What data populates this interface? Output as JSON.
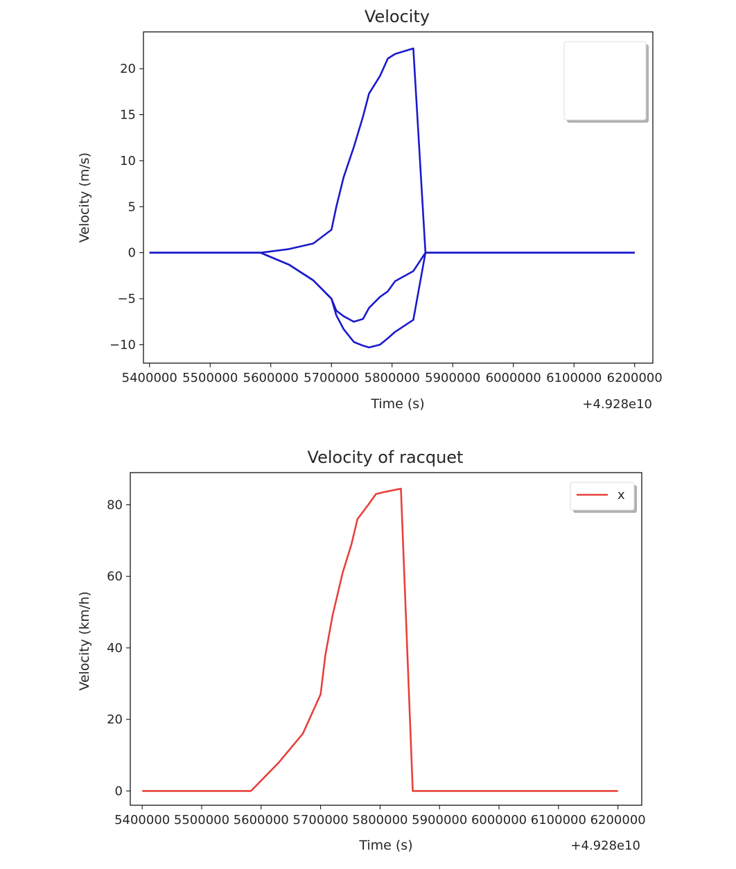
{
  "chart_data": [
    {
      "type": "line",
      "title": "Velocity",
      "xlabel": "Time (s)",
      "ylabel": "Velocity (m/s)",
      "x_offset_label": "+4.928e10",
      "xlim": [
        5390000,
        6230000
      ],
      "ylim": [
        -12,
        24
      ],
      "xticks": [
        5400000,
        5500000,
        5600000,
        5700000,
        5800000,
        5900000,
        6000000,
        6100000,
        6200000
      ],
      "xtick_labels": [
        "5400000",
        "5500000",
        "5600000",
        "5700000",
        "5800000",
        "5900000",
        "6000000",
        "6100000",
        "6200000"
      ],
      "yticks": [
        -10,
        -5,
        0,
        5,
        10,
        15,
        20
      ],
      "ytick_labels": [
        "−10",
        "−5",
        "0",
        "5",
        "10",
        "15",
        "20"
      ],
      "legend": {
        "location": "upper right",
        "entries": []
      },
      "series": [
        {
          "color": "#1a1acc",
          "x": [
            5400000,
            5500000,
            5583000,
            5630000,
            5670000,
            5700000,
            5708000,
            5720000,
            5737000,
            5752000,
            5762000,
            5780000,
            5793000,
            5805000,
            5835000,
            5855000,
            6200000
          ],
          "y": [
            0,
            0,
            0,
            0.4,
            1.0,
            2.5,
            5.0,
            8.2,
            11.5,
            14.8,
            17.3,
            19.2,
            21.1,
            21.6,
            22.2,
            0,
            0
          ]
        },
        {
          "color": "#1a1acc",
          "x": [
            5400000,
            5500000,
            5583000,
            5630000,
            5670000,
            5700000,
            5708000,
            5720000,
            5737000,
            5752000,
            5762000,
            5780000,
            5793000,
            5805000,
            5835000,
            5855000,
            6200000
          ],
          "y": [
            0,
            0,
            0,
            -1.3,
            -3.0,
            -5.0,
            -6.3,
            -6.9,
            -7.5,
            -7.2,
            -6.0,
            -4.8,
            -4.2,
            -3.1,
            -2.0,
            0,
            0
          ]
        },
        {
          "color": "#1a1acc",
          "x": [
            5400000,
            5500000,
            5583000,
            5630000,
            5670000,
            5700000,
            5708000,
            5720000,
            5737000,
            5752000,
            5762000,
            5780000,
            5793000,
            5805000,
            5835000,
            5855000,
            6200000
          ],
          "y": [
            0,
            0,
            0,
            -1.3,
            -3.0,
            -5.0,
            -6.8,
            -8.3,
            -9.7,
            -10.1,
            -10.3,
            -10.0,
            -9.3,
            -8.6,
            -7.3,
            0,
            0
          ]
        }
      ]
    },
    {
      "type": "line",
      "title": "Velocity of racquet",
      "xlabel": "Time (s)",
      "ylabel": "Velocity (km/h)",
      "x_offset_label": "+4.928e10",
      "xlim": [
        5380000,
        6240000
      ],
      "ylim": [
        -4,
        89
      ],
      "xticks": [
        5400000,
        5500000,
        5600000,
        5700000,
        5800000,
        5900000,
        6000000,
        6100000,
        6200000
      ],
      "xtick_labels": [
        "5400000",
        "5500000",
        "5600000",
        "5700000",
        "5800000",
        "5900000",
        "6000000",
        "6100000",
        "6200000"
      ],
      "yticks": [
        0,
        20,
        40,
        60,
        80
      ],
      "ytick_labels": [
        "0",
        "20",
        "40",
        "60",
        "80"
      ],
      "legend": {
        "location": "upper right",
        "entries": [
          "x"
        ]
      },
      "series": [
        {
          "name": "x",
          "color": "#e8403a",
          "x": [
            5400000,
            5500000,
            5583000,
            5630000,
            5670000,
            5700000,
            5708000,
            5720000,
            5737000,
            5752000,
            5762000,
            5780000,
            5793000,
            5805000,
            5835000,
            5855000,
            6200000
          ],
          "y": [
            0,
            0,
            0,
            8,
            16,
            27,
            38,
            49,
            61,
            69,
            76,
            80,
            83,
            83.5,
            84.5,
            0,
            0
          ]
        }
      ]
    }
  ]
}
